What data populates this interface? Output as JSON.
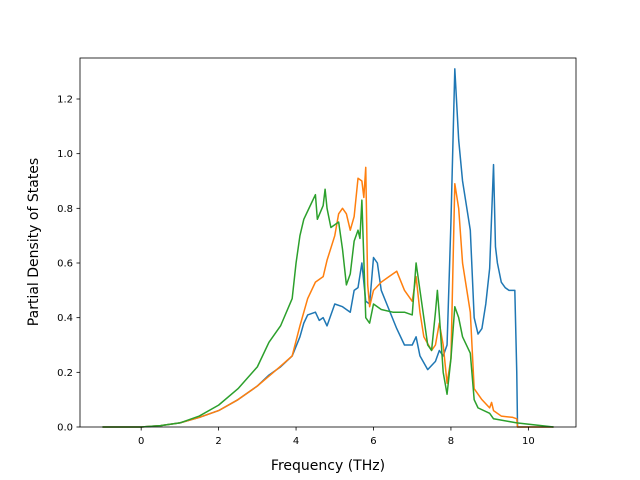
{
  "chart_data": {
    "type": "line",
    "title": "",
    "xlabel": "Frequency (THz)",
    "ylabel": "Partial Density of States",
    "xlim": [
      -1.58,
      11.23
    ],
    "ylim": [
      0,
      1.35
    ],
    "xticks": [
      0,
      2,
      4,
      6,
      8,
      10
    ],
    "yticks": [
      0.0,
      0.2,
      0.4,
      0.6,
      0.8,
      1.0,
      1.2
    ],
    "xtick_labels": [
      "0",
      "2",
      "4",
      "6",
      "8",
      "10"
    ],
    "ytick_labels": [
      "0.0",
      "0.2",
      "0.4",
      "0.6",
      "0.8",
      "1.0",
      "1.2"
    ],
    "grid": false,
    "legend": "none",
    "series": [
      {
        "color": "#1f77b4",
        "points": [
          [
            -1.0,
            0
          ],
          [
            0,
            0
          ],
          [
            0.5,
            0.005
          ],
          [
            1,
            0.015
          ],
          [
            1.5,
            0.035
          ],
          [
            2,
            0.06
          ],
          [
            2.5,
            0.1
          ],
          [
            3,
            0.15
          ],
          [
            3.3,
            0.19
          ],
          [
            3.6,
            0.22
          ],
          [
            3.9,
            0.26
          ],
          [
            4.1,
            0.33
          ],
          [
            4.2,
            0.38
          ],
          [
            4.3,
            0.41
          ],
          [
            4.5,
            0.42
          ],
          [
            4.6,
            0.39
          ],
          [
            4.7,
            0.4
          ],
          [
            4.8,
            0.37
          ],
          [
            5.0,
            0.45
          ],
          [
            5.2,
            0.44
          ],
          [
            5.4,
            0.42
          ],
          [
            5.5,
            0.5
          ],
          [
            5.6,
            0.51
          ],
          [
            5.7,
            0.6
          ],
          [
            5.8,
            0.46
          ],
          [
            5.9,
            0.45
          ],
          [
            6.0,
            0.62
          ],
          [
            6.1,
            0.6
          ],
          [
            6.2,
            0.5
          ],
          [
            6.4,
            0.43
          ],
          [
            6.6,
            0.36
          ],
          [
            6.8,
            0.3
          ],
          [
            7.0,
            0.3
          ],
          [
            7.1,
            0.33
          ],
          [
            7.2,
            0.26
          ],
          [
            7.4,
            0.21
          ],
          [
            7.6,
            0.24
          ],
          [
            7.7,
            0.28
          ],
          [
            7.8,
            0.26
          ],
          [
            7.9,
            0.3
          ],
          [
            8.0,
            0.75
          ],
          [
            8.1,
            1.31
          ],
          [
            8.2,
            1.05
          ],
          [
            8.3,
            0.9
          ],
          [
            8.5,
            0.72
          ],
          [
            8.6,
            0.4
          ],
          [
            8.7,
            0.34
          ],
          [
            8.8,
            0.36
          ],
          [
            8.9,
            0.45
          ],
          [
            9.0,
            0.58
          ],
          [
            9.1,
            0.96
          ],
          [
            9.15,
            0.66
          ],
          [
            9.2,
            0.6
          ],
          [
            9.3,
            0.53
          ],
          [
            9.4,
            0.51
          ],
          [
            9.5,
            0.5
          ],
          [
            9.6,
            0.5
          ],
          [
            9.65,
            0.5
          ],
          [
            9.7,
            0.2
          ],
          [
            9.72,
            0.0
          ],
          [
            10.65,
            0
          ]
        ]
      },
      {
        "color": "#ff7f0e",
        "points": [
          [
            -1.0,
            0
          ],
          [
            0,
            0
          ],
          [
            0.5,
            0.005
          ],
          [
            1,
            0.015
          ],
          [
            1.5,
            0.035
          ],
          [
            2,
            0.06
          ],
          [
            2.5,
            0.1
          ],
          [
            3,
            0.15
          ],
          [
            3.5,
            0.21
          ],
          [
            3.9,
            0.26
          ],
          [
            4.1,
            0.37
          ],
          [
            4.3,
            0.47
          ],
          [
            4.5,
            0.53
          ],
          [
            4.6,
            0.54
          ],
          [
            4.7,
            0.55
          ],
          [
            4.8,
            0.61
          ],
          [
            5.0,
            0.7
          ],
          [
            5.1,
            0.78
          ],
          [
            5.2,
            0.8
          ],
          [
            5.3,
            0.78
          ],
          [
            5.4,
            0.72
          ],
          [
            5.5,
            0.77
          ],
          [
            5.6,
            0.91
          ],
          [
            5.7,
            0.9
          ],
          [
            5.75,
            0.84
          ],
          [
            5.8,
            0.95
          ],
          [
            5.85,
            0.52
          ],
          [
            5.9,
            0.44
          ],
          [
            6.0,
            0.5
          ],
          [
            6.2,
            0.53
          ],
          [
            6.4,
            0.55
          ],
          [
            6.6,
            0.57
          ],
          [
            6.8,
            0.5
          ],
          [
            7.0,
            0.46
          ],
          [
            7.1,
            0.55
          ],
          [
            7.2,
            0.42
          ],
          [
            7.3,
            0.33
          ],
          [
            7.5,
            0.28
          ],
          [
            7.6,
            0.3
          ],
          [
            7.7,
            0.38
          ],
          [
            7.8,
            0.3
          ],
          [
            7.9,
            0.16
          ],
          [
            8.0,
            0.25
          ],
          [
            8.1,
            0.89
          ],
          [
            8.2,
            0.8
          ],
          [
            8.3,
            0.6
          ],
          [
            8.5,
            0.42
          ],
          [
            8.6,
            0.14
          ],
          [
            8.8,
            0.1
          ],
          [
            9.0,
            0.07
          ],
          [
            9.05,
            0.09
          ],
          [
            9.1,
            0.06
          ],
          [
            9.3,
            0.04
          ],
          [
            9.6,
            0.035
          ],
          [
            9.7,
            0.03
          ],
          [
            9.72,
            0.0
          ],
          [
            10.65,
            0
          ]
        ]
      },
      {
        "color": "#2ca02c",
        "points": [
          [
            -1.0,
            0
          ],
          [
            0,
            0
          ],
          [
            0.5,
            0.005
          ],
          [
            1,
            0.015
          ],
          [
            1.5,
            0.04
          ],
          [
            2,
            0.08
          ],
          [
            2.5,
            0.14
          ],
          [
            3,
            0.22
          ],
          [
            3.3,
            0.31
          ],
          [
            3.6,
            0.37
          ],
          [
            3.9,
            0.47
          ],
          [
            4.0,
            0.6
          ],
          [
            4.1,
            0.7
          ],
          [
            4.2,
            0.76
          ],
          [
            4.4,
            0.82
          ],
          [
            4.5,
            0.85
          ],
          [
            4.55,
            0.76
          ],
          [
            4.7,
            0.81
          ],
          [
            4.75,
            0.87
          ],
          [
            4.8,
            0.8
          ],
          [
            4.9,
            0.73
          ],
          [
            5.0,
            0.74
          ],
          [
            5.1,
            0.75
          ],
          [
            5.2,
            0.65
          ],
          [
            5.3,
            0.52
          ],
          [
            5.4,
            0.56
          ],
          [
            5.5,
            0.68
          ],
          [
            5.6,
            0.72
          ],
          [
            5.65,
            0.69
          ],
          [
            5.7,
            0.83
          ],
          [
            5.8,
            0.4
          ],
          [
            5.9,
            0.38
          ],
          [
            6.0,
            0.45
          ],
          [
            6.2,
            0.43
          ],
          [
            6.5,
            0.42
          ],
          [
            6.8,
            0.42
          ],
          [
            7.0,
            0.41
          ],
          [
            7.1,
            0.6
          ],
          [
            7.2,
            0.5
          ],
          [
            7.3,
            0.4
          ],
          [
            7.4,
            0.3
          ],
          [
            7.5,
            0.28
          ],
          [
            7.6,
            0.42
          ],
          [
            7.65,
            0.5
          ],
          [
            7.7,
            0.41
          ],
          [
            7.8,
            0.2
          ],
          [
            7.9,
            0.12
          ],
          [
            8.0,
            0.25
          ],
          [
            8.1,
            0.44
          ],
          [
            8.2,
            0.4
          ],
          [
            8.3,
            0.33
          ],
          [
            8.5,
            0.27
          ],
          [
            8.6,
            0.1
          ],
          [
            8.7,
            0.07
          ],
          [
            9.0,
            0.05
          ],
          [
            9.1,
            0.03
          ],
          [
            9.5,
            0.02
          ],
          [
            9.7,
            0.015
          ],
          [
            10.65,
            0
          ]
        ]
      }
    ]
  }
}
